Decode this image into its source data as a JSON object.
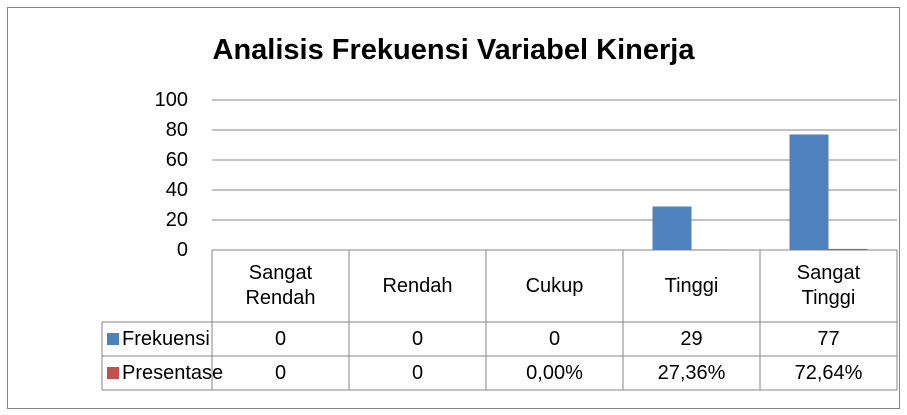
{
  "chart_data": {
    "type": "bar",
    "title": "Analisis Frekuensi Variabel Kinerja",
    "categories": [
      "Sangat Rendah",
      "Rendah",
      "Cukup",
      "Tinggi",
      "Sangat Tinggi"
    ],
    "series": [
      {
        "name": "Frekuensi",
        "color": "#4f81bd",
        "values": [
          0,
          0,
          0,
          29,
          77
        ]
      },
      {
        "name": "Presentase",
        "color": "#c0504d",
        "values": [
          0,
          0,
          0,
          0.2736,
          0.7264
        ],
        "value_labels": [
          "0",
          "0",
          "0,00%",
          "27,36%",
          "72,64%"
        ]
      }
    ],
    "ylim": [
      0,
      100
    ],
    "yticks": [
      0,
      20,
      40,
      60,
      80,
      100
    ],
    "grid": true,
    "data_table": true
  }
}
